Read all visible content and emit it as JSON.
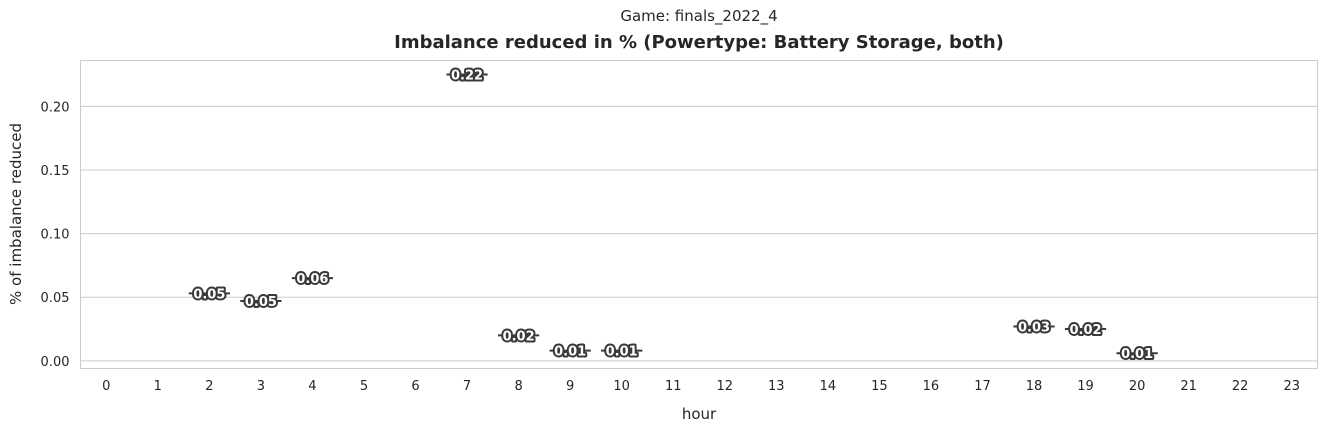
{
  "chart_data": {
    "type": "bar",
    "suptitle": "Game: finals_2022_4",
    "title": "Imbalance reduced in % (Powertype: Battery Storage, both)",
    "xlabel": "hour",
    "ylabel": "% of imbalance reduced",
    "categories": [
      "0",
      "1",
      "2",
      "3",
      "4",
      "5",
      "6",
      "7",
      "8",
      "9",
      "10",
      "11",
      "12",
      "13",
      "14",
      "15",
      "16",
      "17",
      "18",
      "19",
      "20",
      "21",
      "22",
      "23"
    ],
    "values": [
      null,
      null,
      0.053,
      0.047,
      0.065,
      null,
      null,
      0.225,
      0.02,
      0.008,
      0.008,
      null,
      null,
      null,
      null,
      null,
      null,
      null,
      0.027,
      0.025,
      0.006,
      null,
      null,
      null
    ],
    "data_labels": [
      "",
      "",
      "0.05",
      "0.05",
      "0.06",
      "",
      "",
      "0.22",
      "0.02",
      "0.01",
      "0.01",
      "",
      "",
      "",
      "",
      "",
      "",
      "",
      "0.03",
      "0.02",
      "0.01",
      "",
      "",
      ""
    ],
    "yticks": [
      0.0,
      0.05,
      0.1,
      0.15,
      0.2
    ],
    "ytick_labels": [
      "0.00",
      "0.05",
      "0.10",
      "0.15",
      "0.20"
    ],
    "ylim": [
      -0.006,
      0.236
    ],
    "grid": "y",
    "mark_color": "#3a3a3a"
  }
}
